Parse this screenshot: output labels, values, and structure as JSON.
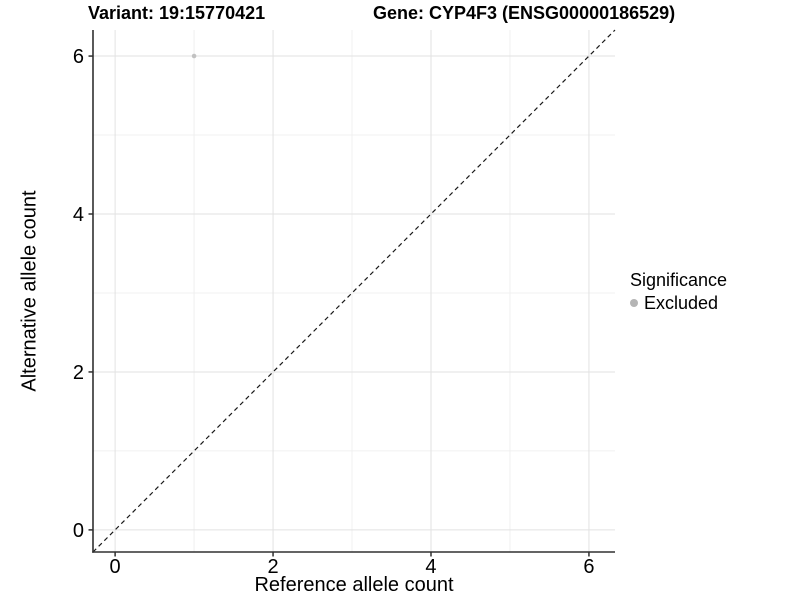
{
  "chart_data": {
    "type": "scatter",
    "title_left": "Variant: 19:15770421",
    "title_right": "Gene: CYP4F3 (ENSG00000186529)",
    "xlabel": "Reference allele count",
    "ylabel": "Alternative allele count",
    "xlim": [
      -0.28,
      6.33
    ],
    "ylim": [
      -0.28,
      6.33
    ],
    "x_ticks": [
      0,
      2,
      4,
      6
    ],
    "y_ticks": [
      0,
      2,
      4,
      6
    ],
    "x_minor_ticks": [
      1,
      3,
      5
    ],
    "y_minor_ticks": [
      1,
      3,
      5
    ],
    "grid": "major+minor",
    "series": [
      {
        "name": "Excluded",
        "color": "#c2c2c2",
        "point_radius": 2.3,
        "points": [
          {
            "x": 1,
            "y": 6
          }
        ]
      }
    ],
    "reference_line": {
      "type": "identity y=x",
      "style": "dashed",
      "color": "#1a1a1a"
    },
    "legend": {
      "title": "Significance",
      "position": "right",
      "items": [
        {
          "label": "Excluded",
          "color": "#b5b5b5"
        }
      ]
    },
    "colors": {
      "background": "#ffffff",
      "grid_major": "#e2e2e2",
      "grid_minor": "#f0f0f0",
      "axis_line": "#303030",
      "text": "#000000"
    }
  }
}
